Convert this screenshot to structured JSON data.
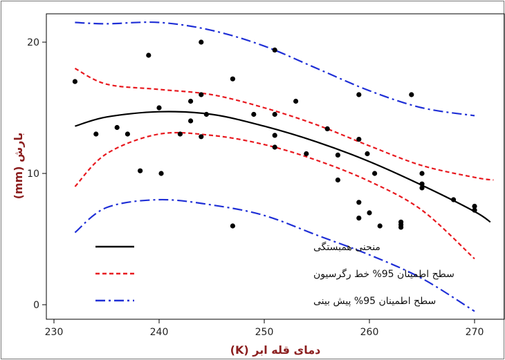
{
  "chart_data": {
    "type": "scatter",
    "title": "",
    "xlabel": "دمای قله ابر (K)",
    "ylabel": "بارش (mm)",
    "xlim": [
      229.5,
      271.8
    ],
    "ylim": [
      -0.8,
      22.0
    ],
    "x_ticks": [
      "230",
      "240",
      "250",
      "260",
      "270"
    ],
    "y_ticks": [
      "0",
      "10",
      "20"
    ],
    "points": [
      [
        232,
        17.0
      ],
      [
        234,
        13.0
      ],
      [
        236,
        13.5
      ],
      [
        237,
        13.0
      ],
      [
        238.2,
        10.2
      ],
      [
        239,
        19.0
      ],
      [
        240,
        15.0
      ],
      [
        240.2,
        10.0
      ],
      [
        242,
        13.0
      ],
      [
        243,
        15.5
      ],
      [
        243,
        14.0
      ],
      [
        244,
        20.0
      ],
      [
        244,
        16.0
      ],
      [
        244,
        12.8
      ],
      [
        244.5,
        14.5
      ],
      [
        247,
        17.2
      ],
      [
        247,
        6.0
      ],
      [
        249,
        14.5
      ],
      [
        251,
        19.4
      ],
      [
        251,
        14.5
      ],
      [
        251,
        12.9
      ],
      [
        251,
        12.0
      ],
      [
        253,
        15.5
      ],
      [
        254,
        11.5
      ],
      [
        256,
        13.4
      ],
      [
        257,
        11.4
      ],
      [
        257,
        9.5
      ],
      [
        259,
        16.0
      ],
      [
        259,
        12.6
      ],
      [
        259,
        7.8
      ],
      [
        259,
        6.6
      ],
      [
        259.8,
        11.5
      ],
      [
        260,
        7.0
      ],
      [
        260.5,
        10.0
      ],
      [
        261,
        6.0
      ],
      [
        263,
        6.3
      ],
      [
        263,
        6.1
      ],
      [
        263,
        5.9
      ],
      [
        264,
        16.0
      ],
      [
        265,
        10.0
      ],
      [
        265,
        9.2
      ],
      [
        265,
        8.9
      ],
      [
        268,
        8.0
      ],
      [
        270,
        7.5
      ],
      [
        270,
        7.2
      ]
    ],
    "series": [
      {
        "name": "منحنی همبستگی",
        "color": "#000000",
        "style": "solid",
        "x": [
          232,
          235,
          240,
          245,
          250,
          255,
          260,
          265,
          270,
          271.5
        ],
        "y": [
          13.6,
          14.3,
          14.7,
          14.5,
          13.6,
          12.4,
          10.9,
          9.1,
          7.1,
          6.3
        ]
      },
      {
        "name": "سطح اطمینان 95% خط رگرسیون",
        "color": "#e8191f",
        "style": "dashed",
        "x": [
          232,
          235,
          240,
          245,
          250,
          255,
          260,
          265,
          270,
          271.8
        ],
        "y": [
          18.0,
          16.8,
          16.4,
          16.0,
          15.0,
          13.7,
          12.1,
          10.6,
          9.7,
          9.5
        ]
      },
      {
        "name": "",
        "color": "#e8191f",
        "style": "dashed",
        "x": [
          232,
          235,
          240,
          245,
          250,
          255,
          260,
          265,
          270
        ],
        "y": [
          9.0,
          11.5,
          13.0,
          12.9,
          12.2,
          11.0,
          9.4,
          7.2,
          3.5
        ]
      },
      {
        "name": "سطح اطمینان 95% پیش بینی",
        "color": "#1f2fd6",
        "style": "dashdot",
        "x": [
          232,
          235,
          240,
          245,
          250,
          255,
          260,
          265,
          270
        ],
        "y": [
          21.5,
          21.4,
          21.5,
          20.9,
          19.7,
          18.0,
          16.3,
          15.0,
          14.4
        ]
      },
      {
        "name": "",
        "color": "#1f2fd6",
        "style": "dashdot",
        "x": [
          232,
          235,
          240,
          245,
          250,
          255,
          260,
          265,
          270
        ],
        "y": [
          5.5,
          7.4,
          8.0,
          7.6,
          6.8,
          5.3,
          3.8,
          2.0,
          -0.5
        ]
      }
    ],
    "legend_position": "bottom-left",
    "grid": false
  }
}
